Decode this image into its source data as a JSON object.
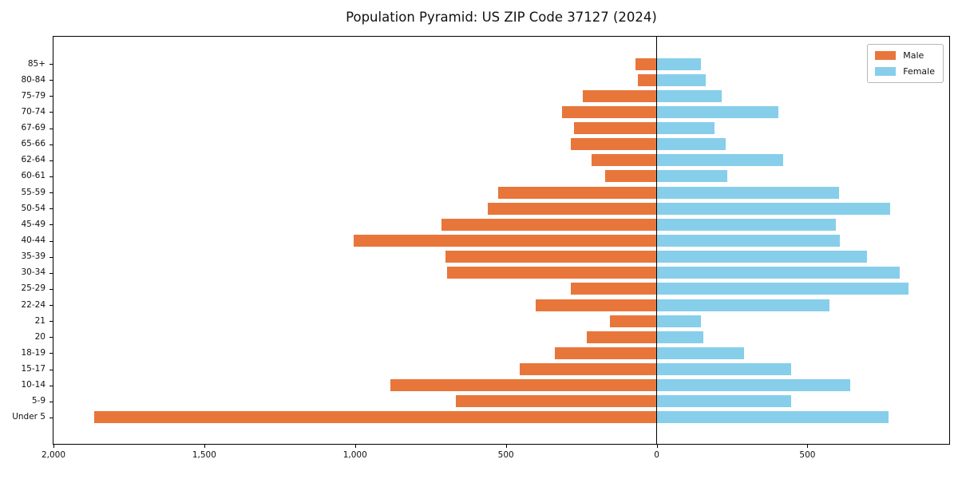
{
  "title": "Population Pyramid: US ZIP Code 37127 (2024)",
  "legend": {
    "male_label": "Male",
    "female_label": "Female"
  },
  "colors": {
    "male": "#e8763b",
    "female": "#87ceeb",
    "axis": "#000000",
    "background": "#ffffff"
  },
  "chart_data": {
    "type": "bar",
    "subtype": "population-pyramid",
    "title": "Population Pyramid: US ZIP Code 37127 (2024)",
    "xlabel": "",
    "ylabel": "",
    "grid": false,
    "legend_position": "upper-right",
    "xlim": [
      -2000,
      970
    ],
    "x_ticks": [
      {
        "value": -2000,
        "label": "2,000"
      },
      {
        "value": -1500,
        "label": "1,500"
      },
      {
        "value": -1000,
        "label": "1,000"
      },
      {
        "value": -500,
        "label": "500"
      },
      {
        "value": 0,
        "label": "0"
      },
      {
        "value": 500,
        "label": "500"
      }
    ],
    "categories": [
      "85+",
      "80-84",
      "75-79",
      "70-74",
      "67-69",
      "65-66",
      "62-64",
      "60-61",
      "55-59",
      "50-54",
      "45-49",
      "40-44",
      "35-39",
      "30-34",
      "25-29",
      "22-24",
      "21",
      "20",
      "18-19",
      "15-17",
      "10-14",
      "5-9",
      "Under 5"
    ],
    "series": [
      {
        "name": "Male",
        "side": "left",
        "color": "#e8763b",
        "values": [
          70,
          62,
          246,
          315,
          273,
          286,
          217,
          170,
          525,
          559,
          713,
          1005,
          700,
          694,
          284,
          400,
          154,
          233,
          337,
          453,
          883,
          665,
          1865
        ]
      },
      {
        "name": "Female",
        "side": "right",
        "color": "#87ceeb",
        "values": [
          146,
          162,
          215,
          403,
          191,
          230,
          419,
          233,
          604,
          774,
          594,
          607,
          697,
          805,
          835,
          572,
          148,
          156,
          289,
          445,
          641,
          445,
          769
        ]
      }
    ]
  }
}
